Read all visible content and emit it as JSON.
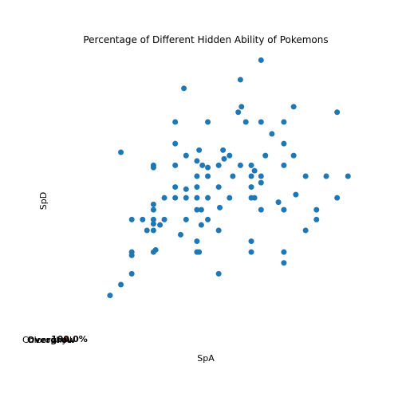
{
  "chart_data": {
    "type": "scatter",
    "title": "Percentage of Different Hidden Ability of Pokemons",
    "xlabel": "SpA",
    "ylabel": "SpD",
    "annotations": [
      "Chlorophyll",
      "Overgrow",
      "100.0%"
    ],
    "color": "#1f77b4",
    "xlim": [
      -25,
      262
    ],
    "ylim": [
      -24,
      258
    ],
    "x": [
      169,
      150,
      98,
      151,
      199,
      148,
      239,
      90,
      120,
      155,
      169,
      190,
      179,
      90,
      190,
      40,
      134,
      112,
      100,
      140,
      173,
      199,
      110,
      70,
      90,
      115,
      120,
      130,
      150,
      160,
      190,
      70,
      135,
      163,
      110,
      120,
      143,
      160,
      169,
      210,
      229,
      249,
      169,
      90,
      100,
      110,
      130,
      160,
      201,
      80,
      90,
      100,
      110,
      120,
      140,
      160,
      163,
      239,
      70,
      185,
      70,
      110,
      114,
      131,
      169,
      190,
      220,
      50,
      60,
      70,
      80,
      100,
      120,
      70,
      76,
      114,
      220,
      64,
      70,
      130,
      210,
      95,
      110,
      160,
      50,
      70,
      72,
      110,
      112,
      160,
      190,
      50,
      190,
      50,
      130,
      40,
      30
    ],
    "values": [
      247,
      229,
      221,
      204,
      204,
      199,
      199,
      190,
      190,
      190,
      190,
      190,
      179,
      170,
      170,
      162,
      164,
      164,
      159,
      159,
      159,
      159,
      154,
      150,
      150,
      150,
      148,
      150,
      150,
      150,
      150,
      148,
      156,
      145,
      140,
      140,
      140,
      140,
      140,
      140,
      140,
      140,
      134,
      130,
      128,
      130,
      130,
      130,
      123,
      120,
      120,
      120,
      120,
      120,
      120,
      120,
      120,
      120,
      114,
      116,
      109,
      109,
      109,
      111,
      109,
      109,
      109,
      100,
      100,
      100,
      100,
      100,
      100,
      96,
      95,
      95,
      100,
      90,
      90,
      90,
      90,
      86,
      80,
      80,
      70,
      70,
      72,
      70,
      70,
      70,
      70,
      67,
      60,
      50,
      50,
      40,
      30
    ]
  }
}
